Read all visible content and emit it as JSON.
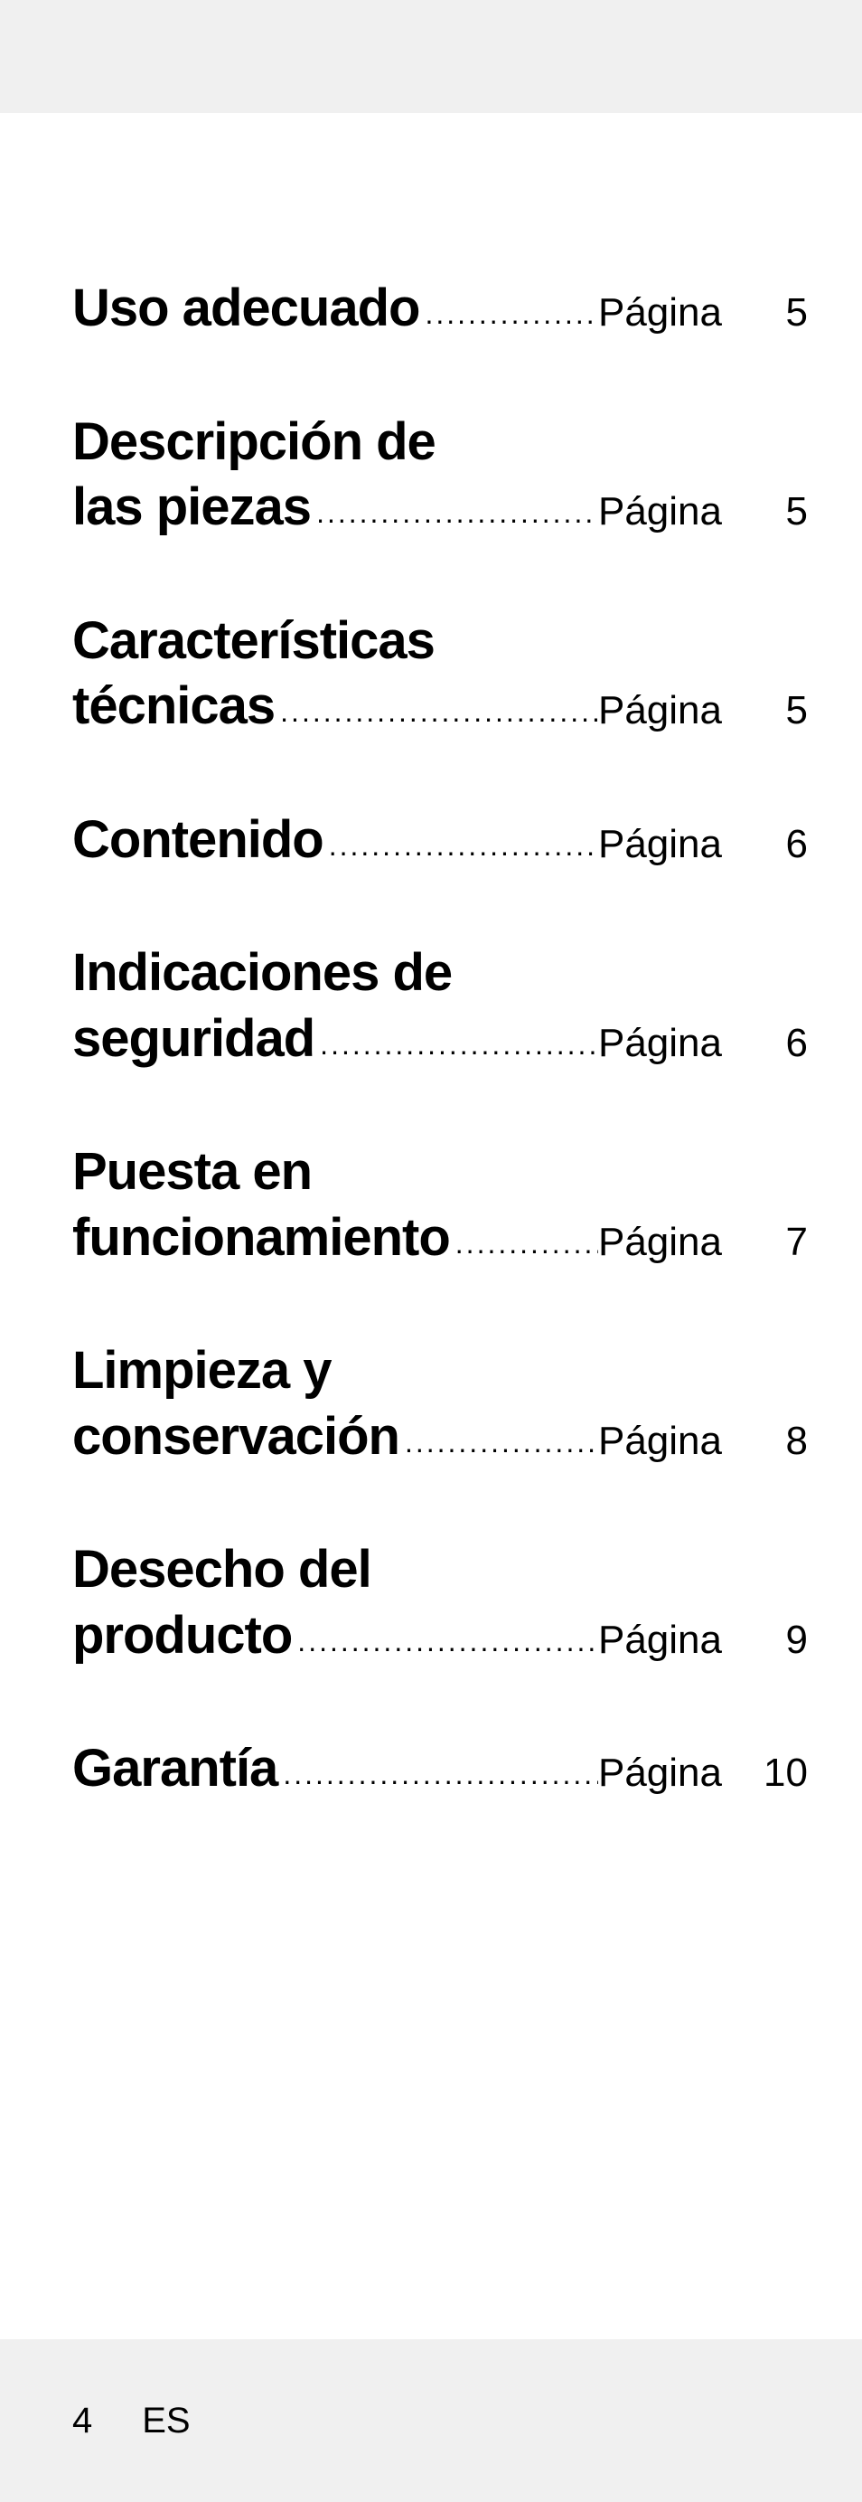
{
  "toc": {
    "page_label": "Página",
    "entries": [
      {
        "title_lines": [
          "Uso adecuado"
        ],
        "page": "5"
      },
      {
        "title_lines": [
          "Descripción de",
          "las piezas"
        ],
        "page": "5"
      },
      {
        "title_lines": [
          "Características",
          "técnicas"
        ],
        "page": "5"
      },
      {
        "title_lines": [
          "Contenido"
        ],
        "page": "6"
      },
      {
        "title_lines": [
          "Indicaciones de",
          "seguridad"
        ],
        "page": "6"
      },
      {
        "title_lines": [
          "Puesta en",
          "funcionamiento"
        ],
        "page": "7"
      },
      {
        "title_lines": [
          "Limpieza y",
          "conservación"
        ],
        "page": "8"
      },
      {
        "title_lines": [
          "Desecho del",
          "producto"
        ],
        "page": "9"
      },
      {
        "title_lines": [
          "Garantía"
        ],
        "page": "10"
      }
    ]
  },
  "footer": {
    "page_number": "4",
    "language": "ES"
  },
  "style": {
    "background_color": "#ffffff",
    "bar_color": "#f0f0f0",
    "text_color": "#000000",
    "title_fontsize": 58,
    "label_fontsize": 44,
    "footer_fontsize": 40
  }
}
